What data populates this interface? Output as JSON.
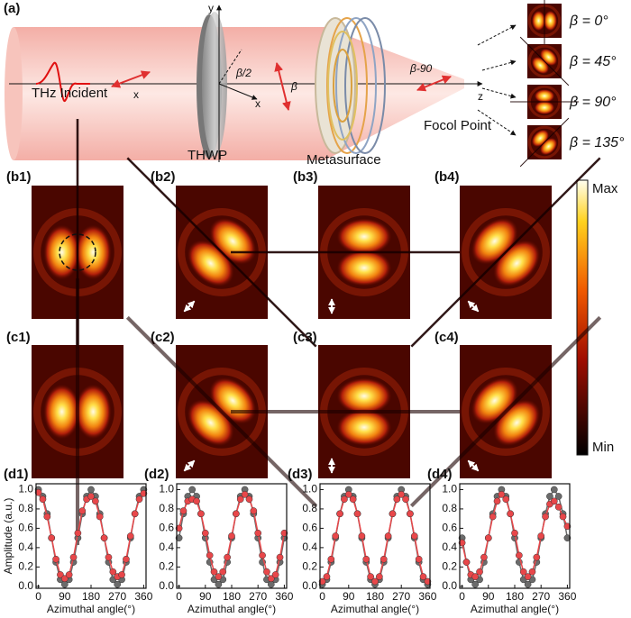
{
  "panel_a": {
    "label": "(a)",
    "incident": "THz Incident",
    "x_axis": "x",
    "y_axis": "y",
    "half_beta": "β/2",
    "beta": "β",
    "beta_minus_90": "β-90",
    "z_axis": "z",
    "x_axis_2": "x",
    "thwp": "THWP",
    "metasurface": "Metasurface",
    "focal_point": "Focol Point",
    "insets": [
      "β = 0°",
      "β = 45°",
      "β = 90°",
      "β = 135°"
    ]
  },
  "panel_b": {
    "labels": [
      "(b1)",
      "(b2)",
      "(b3)",
      "(b4)"
    ]
  },
  "panel_c": {
    "labels": [
      "(c1)",
      "(c2)",
      "(c3)",
      "(c4)"
    ]
  },
  "colorbar": {
    "max": "Max",
    "min": "Min"
  },
  "chart_data": [
    {
      "type": "line",
      "title": "(d1)",
      "y_label": "Amplitude (a.u.)",
      "x_label": "Azimuthal angle(°)",
      "x": [
        0,
        15,
        30,
        45,
        60,
        75,
        90,
        105,
        120,
        135,
        150,
        165,
        180,
        195,
        210,
        225,
        240,
        255,
        270,
        285,
        300,
        315,
        330,
        345,
        360
      ],
      "xlim": [
        -8,
        368
      ],
      "xticks": [
        0,
        90,
        180,
        270,
        360
      ],
      "ylim": [
        -0.02,
        1.06
      ],
      "yticks": [
        {
          "value": 0,
          "label": "0.0"
        },
        0.2,
        0.4,
        0.6,
        0.8,
        {
          "value": 1,
          "label": "1.0"
        }
      ],
      "series": [
        {
          "color": "#6b6b6b",
          "values": [
            1,
            0.93,
            0.75,
            0.5,
            0.25,
            0.07,
            0.02,
            0.07,
            0.25,
            0.5,
            0.75,
            0.93,
            1,
            0.93,
            0.75,
            0.5,
            0.25,
            0.07,
            0.02,
            0.07,
            0.25,
            0.5,
            0.75,
            0.93,
            1
          ]
        },
        {
          "color": "#e8474a",
          "values": [
            0.97,
            0.9,
            0.72,
            0.5,
            0.28,
            0.12,
            0.08,
            0.12,
            0.3,
            0.55,
            0.78,
            0.9,
            0.93,
            0.88,
            0.72,
            0.5,
            0.3,
            0.15,
            0.1,
            0.12,
            0.28,
            0.52,
            0.75,
            0.9,
            0.96
          ]
        }
      ]
    },
    {
      "type": "line",
      "title": "(d2)",
      "x_label": "Azimuthal angle(°)",
      "x": [
        0,
        15,
        30,
        45,
        60,
        75,
        90,
        105,
        120,
        135,
        150,
        165,
        180,
        195,
        210,
        225,
        240,
        255,
        270,
        285,
        300,
        315,
        330,
        345,
        360
      ],
      "xlim": [
        -8,
        368
      ],
      "xticks": [
        0,
        90,
        180,
        270,
        360
      ],
      "ylim": [
        -0.02,
        1.06
      ],
      "yticks": [
        {
          "value": 0,
          "label": "0.0"
        },
        0.2,
        0.4,
        0.6,
        0.8,
        {
          "value": 1,
          "label": "1.0"
        }
      ],
      "series": [
        {
          "color": "#6b6b6b",
          "values": [
            0.5,
            0.75,
            0.93,
            1,
            0.93,
            0.75,
            0.5,
            0.25,
            0.07,
            0.02,
            0.07,
            0.25,
            0.5,
            0.75,
            0.93,
            1,
            0.93,
            0.75,
            0.5,
            0.25,
            0.07,
            0.02,
            0.07,
            0.25,
            0.5
          ]
        },
        {
          "color": "#e8474a",
          "values": [
            0.6,
            0.78,
            0.88,
            0.9,
            0.88,
            0.75,
            0.55,
            0.32,
            0.15,
            0.1,
            0.15,
            0.3,
            0.52,
            0.75,
            0.9,
            0.95,
            0.9,
            0.78,
            0.55,
            0.32,
            0.15,
            0.08,
            0.12,
            0.3,
            0.55
          ]
        }
      ]
    },
    {
      "type": "line",
      "title": "(d3)",
      "x_label": "Azimuthal angle(°)",
      "x": [
        0,
        15,
        30,
        45,
        60,
        75,
        90,
        105,
        120,
        135,
        150,
        165,
        180,
        195,
        210,
        225,
        240,
        255,
        270,
        285,
        300,
        315,
        330,
        345,
        360
      ],
      "xlim": [
        -8,
        368
      ],
      "xticks": [
        0,
        90,
        180,
        270,
        360
      ],
      "ylim": [
        -0.02,
        1.06
      ],
      "yticks": [
        {
          "value": 0,
          "label": "0.0"
        },
        0.2,
        0.4,
        0.6,
        0.8,
        {
          "value": 1,
          "label": "1.0"
        }
      ],
      "series": [
        {
          "color": "#6b6b6b",
          "values": [
            0.02,
            0.07,
            0.25,
            0.5,
            0.75,
            0.93,
            1,
            0.93,
            0.75,
            0.5,
            0.25,
            0.07,
            0.02,
            0.07,
            0.25,
            0.5,
            0.75,
            0.93,
            1,
            0.93,
            0.75,
            0.5,
            0.25,
            0.07,
            0.02
          ]
        },
        {
          "color": "#e8474a",
          "values": [
            0.05,
            0.1,
            0.28,
            0.52,
            0.75,
            0.9,
            0.95,
            0.9,
            0.75,
            0.52,
            0.28,
            0.1,
            0.05,
            0.1,
            0.28,
            0.52,
            0.75,
            0.9,
            0.95,
            0.9,
            0.75,
            0.52,
            0.28,
            0.1,
            0.05
          ]
        }
      ]
    },
    {
      "type": "line",
      "title": "(d4)",
      "x_label": "Azimuthal angle(°)",
      "x": [
        0,
        15,
        30,
        45,
        60,
        75,
        90,
        105,
        120,
        135,
        150,
        165,
        180,
        195,
        210,
        225,
        240,
        255,
        270,
        285,
        300,
        315,
        330,
        345,
        360
      ],
      "xlim": [
        -8,
        368
      ],
      "xticks": [
        0,
        90,
        180,
        270,
        360
      ],
      "ylim": [
        -0.02,
        1.06
      ],
      "yticks": [
        {
          "value": 0,
          "label": "0.0"
        },
        0.2,
        0.4,
        0.6,
        0.8,
        {
          "value": 1,
          "label": "1.0"
        }
      ],
      "series": [
        {
          "color": "#6b6b6b",
          "values": [
            0.5,
            0.25,
            0.07,
            0.02,
            0.07,
            0.25,
            0.5,
            0.75,
            0.93,
            1,
            0.93,
            0.75,
            0.5,
            0.25,
            0.07,
            0.02,
            0.07,
            0.25,
            0.5,
            0.75,
            0.93,
            1,
            0.93,
            0.75,
            0.5
          ]
        },
        {
          "color": "#e8474a",
          "values": [
            0.45,
            0.25,
            0.12,
            0.1,
            0.15,
            0.3,
            0.5,
            0.72,
            0.88,
            0.95,
            0.9,
            0.75,
            0.55,
            0.32,
            0.15,
            0.1,
            0.15,
            0.3,
            0.52,
            0.72,
            0.85,
            0.88,
            0.82,
            0.72,
            0.62
          ]
        }
      ]
    }
  ]
}
